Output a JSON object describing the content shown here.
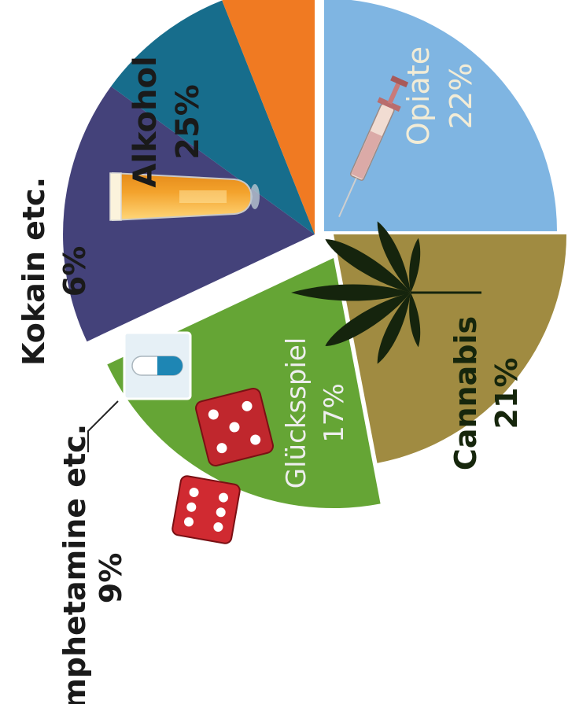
{
  "chart_data": {
    "type": "pie",
    "slices": [
      {
        "label": "Alkohol",
        "value_label": "25%",
        "value": 25,
        "color": "#7fb5e2",
        "label_color": "#1a1a1a"
      },
      {
        "label": "Opiate",
        "value_label": "22%",
        "value": 22,
        "color": "#a08b41",
        "label_color": "#f2ecd6"
      },
      {
        "label": "Cannabis",
        "value_label": "21%",
        "value": 21,
        "color": "#65a535",
        "label_color": "#16260c"
      },
      {
        "label": "Glücksspiel",
        "value_label": "17%",
        "value": 17,
        "color": "#44427a",
        "label_color": "#eeeeee"
      },
      {
        "label": "Amphetamine etc.",
        "value_label": "9%",
        "value": 9,
        "color": "#176d8c",
        "label_color": "#1a1a1a"
      },
      {
        "label": "Kokain etc.",
        "value_label": "6%",
        "value": 6,
        "color": "#f07a22",
        "label_color": "#1a1a1a"
      }
    ],
    "icons": [
      "beer-glass-icon",
      "syringe-icon",
      "cannabis-leaf-icon",
      "dice-icon",
      "pill-capsule-icon"
    ]
  }
}
